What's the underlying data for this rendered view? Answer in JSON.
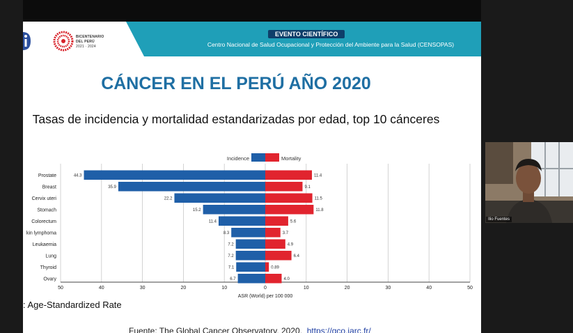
{
  "banner": {
    "event_label": "EVENTO CIENTÍFICO",
    "organization": "Centro Nacional de Salud Ocupacional y Protección del Ambiente para la Salud (CENSOPAS)"
  },
  "logo": {
    "line1": "BICENTENARIO",
    "line2": "DEL PERÚ",
    "line3": "2021 · 2024"
  },
  "slide": {
    "title": "CÁNCER EN EL PERÚ AÑO 2020",
    "subtitle": "Tasas de incidencia y mortalidad estandarizadas por edad, top 10 cánceres",
    "note": ": Age-Standardized Rate",
    "source_text": "Fuente: The Global Cancer Observatory, 2020.",
    "source_link": "https://gco.iarc.fr/"
  },
  "chart_data": {
    "type": "bar",
    "orientation": "horizontal",
    "categories": [
      "Prostate",
      "Breast",
      "Cervix uteri",
      "Stomach",
      "Colorectum",
      "kin lymphoma",
      "Leukaemia",
      "Lung",
      "Thyroid",
      "Ovary"
    ],
    "series": [
      {
        "name": "Incidence",
        "color": "#1f5fa8",
        "values": [
          44.3,
          35.9,
          22.2,
          15.2,
          11.4,
          8.3,
          7.2,
          7.2,
          7.1,
          6.7
        ]
      },
      {
        "name": "Mortality",
        "color": "#e1242e",
        "values": [
          11.4,
          9.1,
          11.5,
          11.8,
          5.6,
          3.7,
          4.9,
          6.4,
          0.89,
          4.0
        ]
      }
    ],
    "value_labels_incidence": [
      "44.3",
      "35.9",
      "22.2",
      "15.2",
      "11.4",
      "8.3",
      "7.2",
      "7.2",
      "7.1",
      "6.7"
    ],
    "value_labels_mortality": [
      "11.4",
      "9.1",
      "11.5",
      "11.8",
      "5.6",
      "3.7",
      "4.9",
      "6.4",
      "0.89",
      "4.0"
    ],
    "xlabel": "ASR (World) per 100 000",
    "xlim": [
      -50,
      50
    ],
    "ticks": [
      -50,
      -40,
      -30,
      -20,
      -10,
      0,
      10,
      20,
      30,
      40,
      50
    ],
    "tick_labels": [
      "50",
      "40",
      "30",
      "20",
      "10",
      "0",
      "10",
      "20",
      "30",
      "40",
      "50"
    ],
    "grid": true,
    "legend": "top-center"
  },
  "webcam": {
    "name": "Ilio Fuentes"
  },
  "colors": {
    "banner": "#1f9fb8",
    "title": "#1f6fa3",
    "incidence": "#1f5fa8",
    "mortality": "#e1242e"
  }
}
